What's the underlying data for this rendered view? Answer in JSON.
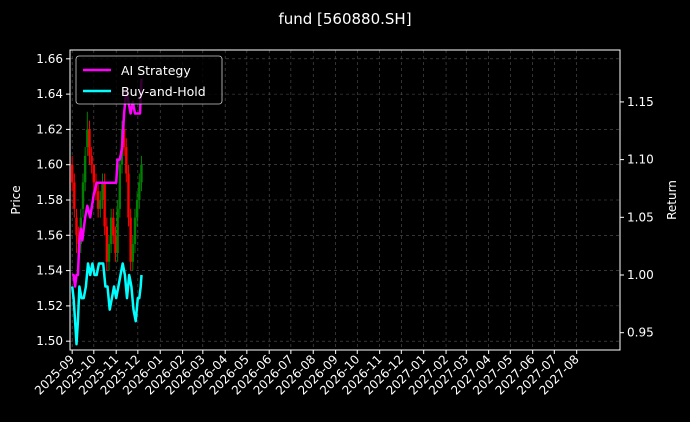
{
  "chart_data": {
    "type": "line",
    "title": "fund [560880.SH]",
    "ylabel_left": "Price",
    "ylabel_right": "Return",
    "ylim_left": [
      1.495,
      1.665
    ],
    "ylim_right": [
      0.935,
      1.195
    ],
    "yticks_left": [
      "1.50",
      "1.52",
      "1.54",
      "1.56",
      "1.58",
      "1.60",
      "1.62",
      "1.64",
      "1.66"
    ],
    "yticks_right": [
      "0.95",
      "1.00",
      "1.05",
      "1.10",
      "1.15"
    ],
    "xticks": [
      "2025-09",
      "2025-10",
      "2025-11",
      "2025-12",
      "2026-01",
      "2026-02",
      "2026-03",
      "2026-04",
      "2026-05",
      "2026-06",
      "2026-07",
      "2026-08",
      "2026-09",
      "2026-10",
      "2026-11",
      "2026-12",
      "2027-01",
      "2027-02",
      "2027-03",
      "2027-04",
      "2027-05",
      "2027-06",
      "2027-07",
      "2027-08"
    ],
    "grid": true,
    "legend_position": "top-left",
    "series": [
      {
        "name": "AI Strategy",
        "axis": "right",
        "color": "#ff00ff",
        "x": [
          "2025-09-01",
          "2025-09-03",
          "2025-09-05",
          "2025-09-07",
          "2025-09-09",
          "2025-09-11",
          "2025-09-13",
          "2025-09-15",
          "2025-09-17",
          "2025-09-19",
          "2025-09-22",
          "2025-09-26",
          "2025-10-01",
          "2025-10-05",
          "2025-10-09",
          "2025-10-13",
          "2025-10-16",
          "2025-10-20",
          "2025-10-24",
          "2025-10-28",
          "2025-11-01",
          "2025-11-03",
          "2025-11-06",
          "2025-11-09",
          "2025-11-12",
          "2025-11-15",
          "2025-11-18",
          "2025-11-21",
          "2025-11-24",
          "2025-11-27",
          "2025-11-30",
          "2025-12-02",
          "2025-12-04",
          "2025-12-06"
        ],
        "values": [
          1.0,
          1.0,
          0.99,
          1.0,
          1.0,
          1.03,
          1.04,
          1.03,
          1.04,
          1.05,
          1.06,
          1.05,
          1.07,
          1.08,
          1.08,
          1.08,
          1.08,
          1.08,
          1.08,
          1.08,
          1.08,
          1.1,
          1.1,
          1.11,
          1.14,
          1.16,
          1.15,
          1.14,
          1.15,
          1.14,
          1.14,
          1.14,
          1.14,
          1.17
        ]
      },
      {
        "name": "Buy-and-Hold",
        "axis": "right",
        "color": "#00ffff",
        "x": [
          "2025-09-01",
          "2025-09-03",
          "2025-09-05",
          "2025-09-07",
          "2025-09-09",
          "2025-09-11",
          "2025-09-14",
          "2025-09-17",
          "2025-09-20",
          "2025-09-23",
          "2025-09-26",
          "2025-09-29",
          "2025-10-02",
          "2025-10-05",
          "2025-10-08",
          "2025-10-11",
          "2025-10-14",
          "2025-10-17",
          "2025-10-20",
          "2025-10-23",
          "2025-10-26",
          "2025-10-29",
          "2025-11-01",
          "2025-11-04",
          "2025-11-07",
          "2025-11-10",
          "2025-11-13",
          "2025-11-16",
          "2025-11-19",
          "2025-11-22",
          "2025-11-25",
          "2025-11-28",
          "2025-12-01",
          "2025-12-03",
          "2025-12-05",
          "2025-12-06"
        ],
        "values": [
          0.99,
          0.98,
          0.96,
          0.94,
          0.96,
          0.99,
          0.98,
          0.98,
          0.99,
          1.01,
          1.0,
          1.01,
          1.0,
          1.0,
          1.01,
          1.01,
          1.01,
          0.99,
          0.99,
          0.97,
          0.98,
          0.99,
          0.98,
          0.99,
          1.0,
          1.01,
          1.0,
          0.98,
          1.0,
          0.99,
          0.97,
          0.96,
          0.98,
          0.98,
          0.99,
          1.0
        ]
      }
    ],
    "candles": {
      "axis": "left",
      "up_color": "#008000",
      "down_color": "#ff0000",
      "x": [
        "2025-09-01",
        "2025-09-04",
        "2025-09-07",
        "2025-09-10",
        "2025-09-13",
        "2025-09-16",
        "2025-09-19",
        "2025-09-22",
        "2025-09-25",
        "2025-09-28",
        "2025-10-01",
        "2025-10-04",
        "2025-10-07",
        "2025-10-10",
        "2025-10-13",
        "2025-10-16",
        "2025-10-19",
        "2025-10-22",
        "2025-10-25",
        "2025-10-28",
        "2025-10-31",
        "2025-11-03",
        "2025-11-06",
        "2025-11-09",
        "2025-11-12",
        "2025-11-15",
        "2025-11-18",
        "2025-11-21",
        "2025-11-24",
        "2025-11-27",
        "2025-11-30",
        "2025-12-03",
        "2025-12-06"
      ],
      "open": [
        1.6,
        1.59,
        1.57,
        1.56,
        1.555,
        1.575,
        1.59,
        1.61,
        1.62,
        1.605,
        1.6,
        1.59,
        1.585,
        1.575,
        1.58,
        1.59,
        1.565,
        1.545,
        1.555,
        1.57,
        1.56,
        1.55,
        1.575,
        1.6,
        1.62,
        1.61,
        1.595,
        1.57,
        1.545,
        1.555,
        1.57,
        1.58,
        1.59
      ],
      "close": [
        1.59,
        1.575,
        1.56,
        1.555,
        1.57,
        1.59,
        1.605,
        1.62,
        1.605,
        1.6,
        1.59,
        1.585,
        1.575,
        1.58,
        1.59,
        1.565,
        1.545,
        1.555,
        1.57,
        1.56,
        1.55,
        1.575,
        1.6,
        1.62,
        1.61,
        1.595,
        1.57,
        1.545,
        1.555,
        1.57,
        1.58,
        1.59,
        1.6
      ],
      "high": [
        1.605,
        1.595,
        1.575,
        1.565,
        1.575,
        1.595,
        1.61,
        1.63,
        1.625,
        1.61,
        1.6,
        1.595,
        1.59,
        1.585,
        1.595,
        1.595,
        1.57,
        1.56,
        1.575,
        1.575,
        1.565,
        1.58,
        1.605,
        1.625,
        1.625,
        1.615,
        1.6,
        1.575,
        1.56,
        1.575,
        1.585,
        1.595,
        1.605
      ],
      "low": [
        1.585,
        1.57,
        1.55,
        1.545,
        1.55,
        1.57,
        1.585,
        1.605,
        1.6,
        1.595,
        1.585,
        1.58,
        1.57,
        1.57,
        1.575,
        1.56,
        1.54,
        1.54,
        1.55,
        1.555,
        1.545,
        1.545,
        1.57,
        1.595,
        1.605,
        1.59,
        1.565,
        1.54,
        1.54,
        1.55,
        1.565,
        1.575,
        1.585
      ]
    }
  }
}
